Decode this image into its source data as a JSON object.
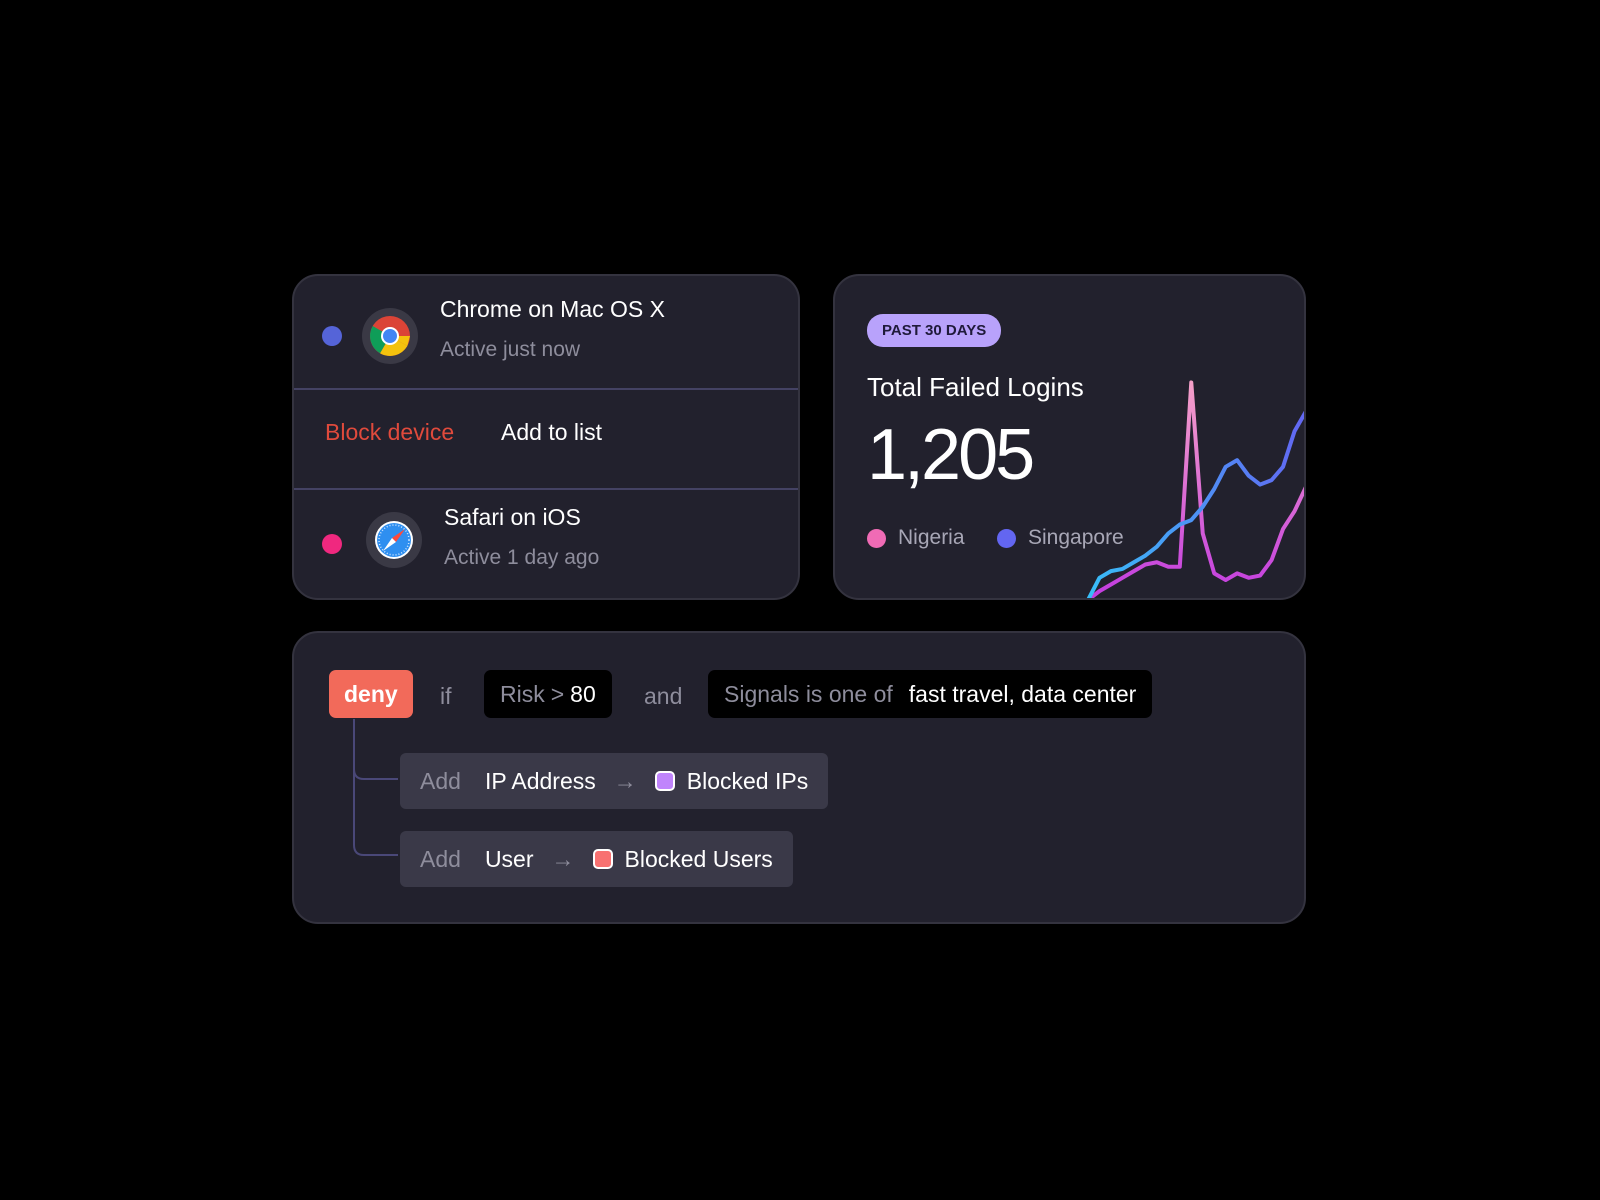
{
  "devices": [
    {
      "name": "Chrome on Mac OS X",
      "status": "Active just now",
      "dot_color": "#5564d8",
      "icon": "chrome-icon"
    },
    {
      "name": "Safari on iOS",
      "status": "Active 1 day ago",
      "dot_color": "#f0287f",
      "icon": "safari-icon"
    }
  ],
  "actions": {
    "block": "Block device",
    "add": "Add to list",
    "block_color": "#e04a3c"
  },
  "stats": {
    "badge": "PAST 30 DAYS",
    "title": "Total Failed Logins",
    "value": "1,205",
    "legend": [
      {
        "label": "Nigeria",
        "color": "#f06bb5"
      },
      {
        "label": "Singapore",
        "color": "#6366f1"
      }
    ]
  },
  "chart_data": {
    "type": "line",
    "series": [
      {
        "name": "Nigeria",
        "values": [
          0,
          4,
          7,
          10,
          13,
          16,
          17,
          15,
          15,
          98,
          30,
          12,
          9,
          12,
          10,
          11,
          18,
          32,
          40,
          51
        ]
      },
      {
        "name": "Singapore",
        "values": [
          0,
          10,
          13,
          14,
          17,
          20,
          24,
          30,
          34,
          36,
          42,
          50,
          60,
          63,
          56,
          52,
          54,
          60,
          76,
          85
        ]
      }
    ]
  },
  "rule": {
    "verdict": "deny",
    "if": "if",
    "cond1": {
      "field": "Risk",
      "op": ">",
      "value": "80"
    },
    "and": "and",
    "cond2": {
      "field": "Signals is one of",
      "value": "fast travel, data center"
    },
    "steps": [
      {
        "verb": "Add",
        "object": "IP Address",
        "arrow": "→",
        "list": "Blocked IPs",
        "color": "#c084fc"
      },
      {
        "verb": "Add",
        "object": "User",
        "arrow": "→",
        "list": "Blocked Users",
        "color": "#f87171"
      }
    ]
  }
}
